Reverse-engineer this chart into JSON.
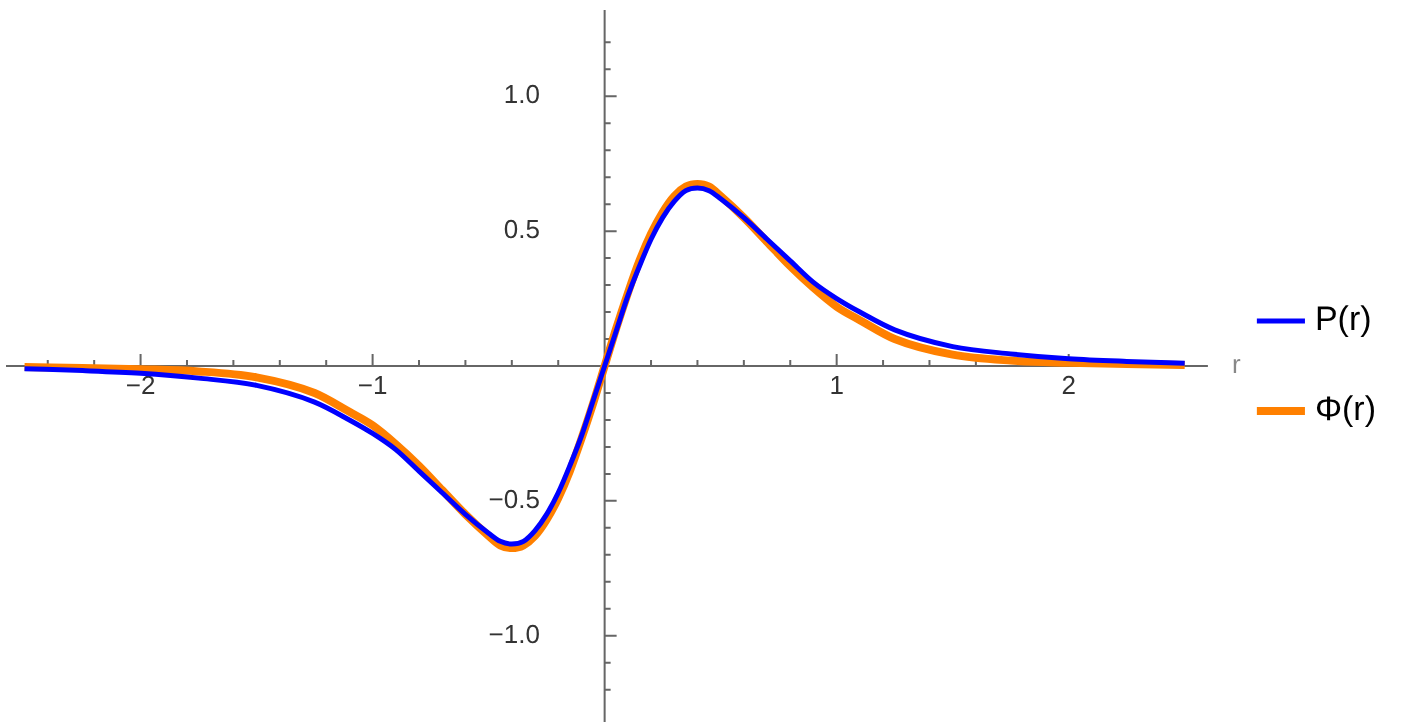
{
  "chart_data": {
    "type": "line",
    "xlabel": "r",
    "legend": "right",
    "x": [
      -2.5,
      -2.25,
      -2,
      -1.75,
      -1.5,
      -1.25,
      -1.1,
      -1,
      -0.9,
      -0.8,
      -0.7,
      -0.6,
      -0.5,
      -0.45,
      -0.4,
      -0.35,
      -0.3,
      -0.25,
      -0.2,
      -0.15,
      -0.1,
      -0.05,
      0,
      0.05,
      0.1,
      0.15,
      0.2,
      0.25,
      0.3,
      0.35,
      0.4,
      0.45,
      0.5,
      0.6,
      0.7,
      0.8,
      0.9,
      1,
      1.1,
      1.25,
      1.5,
      1.75,
      2,
      2.25,
      2.5
    ],
    "series": [
      {
        "name": "P(r)",
        "color": "#0000ff",
        "values": [
          -0.01,
          -0.017,
          -0.027,
          -0.045,
          -0.072,
          -0.134,
          -0.2,
          -0.25,
          -0.31,
          -0.39,
          -0.47,
          -0.55,
          -0.62,
          -0.65,
          -0.66,
          -0.65,
          -0.61,
          -0.55,
          -0.47,
          -0.37,
          -0.26,
          -0.13,
          0,
          0.13,
          0.26,
          0.37,
          0.47,
          0.55,
          0.61,
          0.65,
          0.66,
          0.65,
          0.62,
          0.55,
          0.47,
          0.39,
          0.31,
          0.25,
          0.2,
          0.134,
          0.072,
          0.045,
          0.027,
          0.017,
          0.01
        ]
      },
      {
        "name": "Φ(r)",
        "color": "#ff8000",
        "values": [
          -0.004,
          -0.007,
          -0.012,
          -0.02,
          -0.042,
          -0.1,
          -0.17,
          -0.22,
          -0.29,
          -0.37,
          -0.46,
          -0.55,
          -0.63,
          -0.665,
          -0.675,
          -0.665,
          -0.63,
          -0.57,
          -0.49,
          -0.39,
          -0.27,
          -0.14,
          0,
          0.14,
          0.27,
          0.39,
          0.49,
          0.57,
          0.63,
          0.665,
          0.675,
          0.665,
          0.63,
          0.55,
          0.46,
          0.37,
          0.29,
          0.22,
          0.17,
          0.1,
          0.042,
          0.02,
          0.012,
          0.007,
          0.004
        ]
      }
    ],
    "xlim": [
      -2.58,
      2.6
    ],
    "ylim": [
      -1.32,
      1.32
    ],
    "xticks": [
      {
        "value": -2.4,
        "label": null
      },
      {
        "value": -2.2,
        "label": null
      },
      {
        "value": -2,
        "label": "−2"
      },
      {
        "value": -1.8,
        "label": null
      },
      {
        "value": -1.6,
        "label": null
      },
      {
        "value": -1.4,
        "label": null
      },
      {
        "value": -1.2,
        "label": null
      },
      {
        "value": -1,
        "label": "−1"
      },
      {
        "value": -0.8,
        "label": null
      },
      {
        "value": -0.6,
        "label": null
      },
      {
        "value": -0.4,
        "label": null
      },
      {
        "value": -0.2,
        "label": null
      },
      {
        "value": 0.2,
        "label": null
      },
      {
        "value": 0.4,
        "label": null
      },
      {
        "value": 0.6,
        "label": null
      },
      {
        "value": 0.8,
        "label": null
      },
      1,
      {
        "value": 1.2,
        "label": null
      },
      {
        "value": 1.4,
        "label": null
      },
      {
        "value": 1.6,
        "label": null
      },
      {
        "value": 1.8,
        "label": null
      },
      2,
      {
        "value": 2.2,
        "label": null
      },
      {
        "value": 2.4,
        "label": null
      }
    ],
    "yticks": [
      {
        "value": -1.2,
        "label": null
      },
      {
        "value": -1.1,
        "label": null
      },
      {
        "value": -1,
        "label": "−1.0"
      },
      {
        "value": -0.9,
        "label": null
      },
      {
        "value": -0.8,
        "label": null
      },
      {
        "value": -0.7,
        "label": null
      },
      {
        "value": -0.6,
        "label": null
      },
      {
        "value": -0.5,
        "label": "−0.5"
      },
      {
        "value": -0.4,
        "label": null
      },
      {
        "value": -0.3,
        "label": null
      },
      {
        "value": -0.2,
        "label": null
      },
      {
        "value": -0.1,
        "label": null
      },
      {
        "value": 0.1,
        "label": null
      },
      {
        "value": 0.2,
        "label": null
      },
      {
        "value": 0.3,
        "label": null
      },
      {
        "value": 0.4,
        "label": null
      },
      0.5,
      {
        "value": 0.6,
        "label": null
      },
      {
        "value": 0.7,
        "label": null
      },
      {
        "value": 0.8,
        "label": null
      },
      {
        "value": 0.9,
        "label": null
      },
      {
        "value": 1,
        "label": "1.0"
      },
      {
        "value": 1.1,
        "label": null
      },
      {
        "value": 1.2,
        "label": null
      }
    ]
  }
}
